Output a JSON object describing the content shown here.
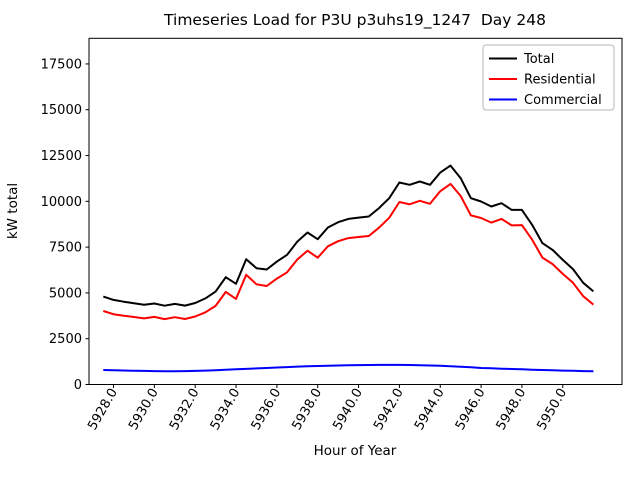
{
  "title": "Timeseries Load for P3U p3uhs19_1247  Day 248",
  "chart_data": {
    "type": "line",
    "title": "Timeseries Load for P3U p3uhs19_1247  Day 248",
    "xlabel": "Hour of Year",
    "ylabel": "kW total",
    "xlim": [
      5926.8,
      5952.9
    ],
    "ylim": [
      0,
      18900
    ],
    "xticks": [
      5928,
      5930,
      5932,
      5934,
      5936,
      5938,
      5940,
      5942,
      5944,
      5946,
      5948,
      5950
    ],
    "xtick_label_format": "one_decimal",
    "xtick_rotation": 60,
    "yticks": [
      0,
      2500,
      5000,
      7500,
      10000,
      12500,
      15000,
      17500
    ],
    "grid": false,
    "legend_position": "upper right",
    "x": [
      5927.5,
      5928.0,
      5928.5,
      5929.0,
      5929.5,
      5930.0,
      5930.5,
      5931.0,
      5931.5,
      5932.0,
      5932.5,
      5933.0,
      5933.5,
      5934.0,
      5934.5,
      5935.0,
      5935.5,
      5936.0,
      5936.5,
      5937.0,
      5937.5,
      5938.0,
      5938.5,
      5939.0,
      5939.5,
      5940.0,
      5940.5,
      5941.0,
      5941.5,
      5942.0,
      5942.5,
      5943.0,
      5943.5,
      5944.0,
      5944.5,
      5945.0,
      5945.5,
      5946.0,
      5946.5,
      5947.0,
      5947.5,
      5948.0,
      5948.5,
      5949.0,
      5949.5,
      5950.0,
      5950.5,
      5951.0,
      5951.5
    ],
    "series": [
      {
        "name": "Total",
        "color": "#000000",
        "values": [
          4800,
          4620,
          4520,
          4440,
          4350,
          4420,
          4300,
          4400,
          4310,
          4450,
          4700,
          5070,
          5860,
          5500,
          6840,
          6350,
          6280,
          6710,
          7080,
          7800,
          8300,
          7930,
          8570,
          8860,
          9040,
          9110,
          9170,
          9630,
          10170,
          11030,
          10900,
          11080,
          10900,
          11570,
          11950,
          11260,
          10170,
          9990,
          9720,
          9900,
          9530,
          9530,
          8720,
          7720,
          7350,
          6800,
          6300,
          5550,
          5080
        ]
      },
      {
        "name": "Residential",
        "color": "#ff0000",
        "values": [
          4010,
          3840,
          3755,
          3685,
          3610,
          3690,
          3572,
          3672,
          3578,
          3710,
          3942,
          4292,
          5058,
          4672,
          5988,
          5472,
          5378,
          5782,
          6128,
          6822,
          7305,
          6920,
          7545,
          7822,
          7990,
          8052,
          8106,
          8562,
          9100,
          9962,
          9838,
          10030,
          9864,
          10550,
          10950,
          10288,
          9230,
          9088,
          8838,
          9038,
          8685,
          8700,
          7910,
          6928,
          6575,
          6040,
          5552,
          4818,
          4360
        ]
      },
      {
        "name": "Commercial",
        "color": "#0000ff",
        "values": [
          790,
          780,
          765,
          755,
          740,
          730,
          728,
          728,
          732,
          740,
          758,
          778,
          802,
          828,
          852,
          878,
          902,
          928,
          952,
          978,
          995,
          1010,
          1025,
          1038,
          1050,
          1058,
          1064,
          1068,
          1070,
          1068,
          1062,
          1050,
          1036,
          1020,
          1000,
          972,
          940,
          902,
          882,
          862,
          845,
          830,
          810,
          792,
          775,
          760,
          748,
          732,
          720
        ]
      }
    ]
  }
}
